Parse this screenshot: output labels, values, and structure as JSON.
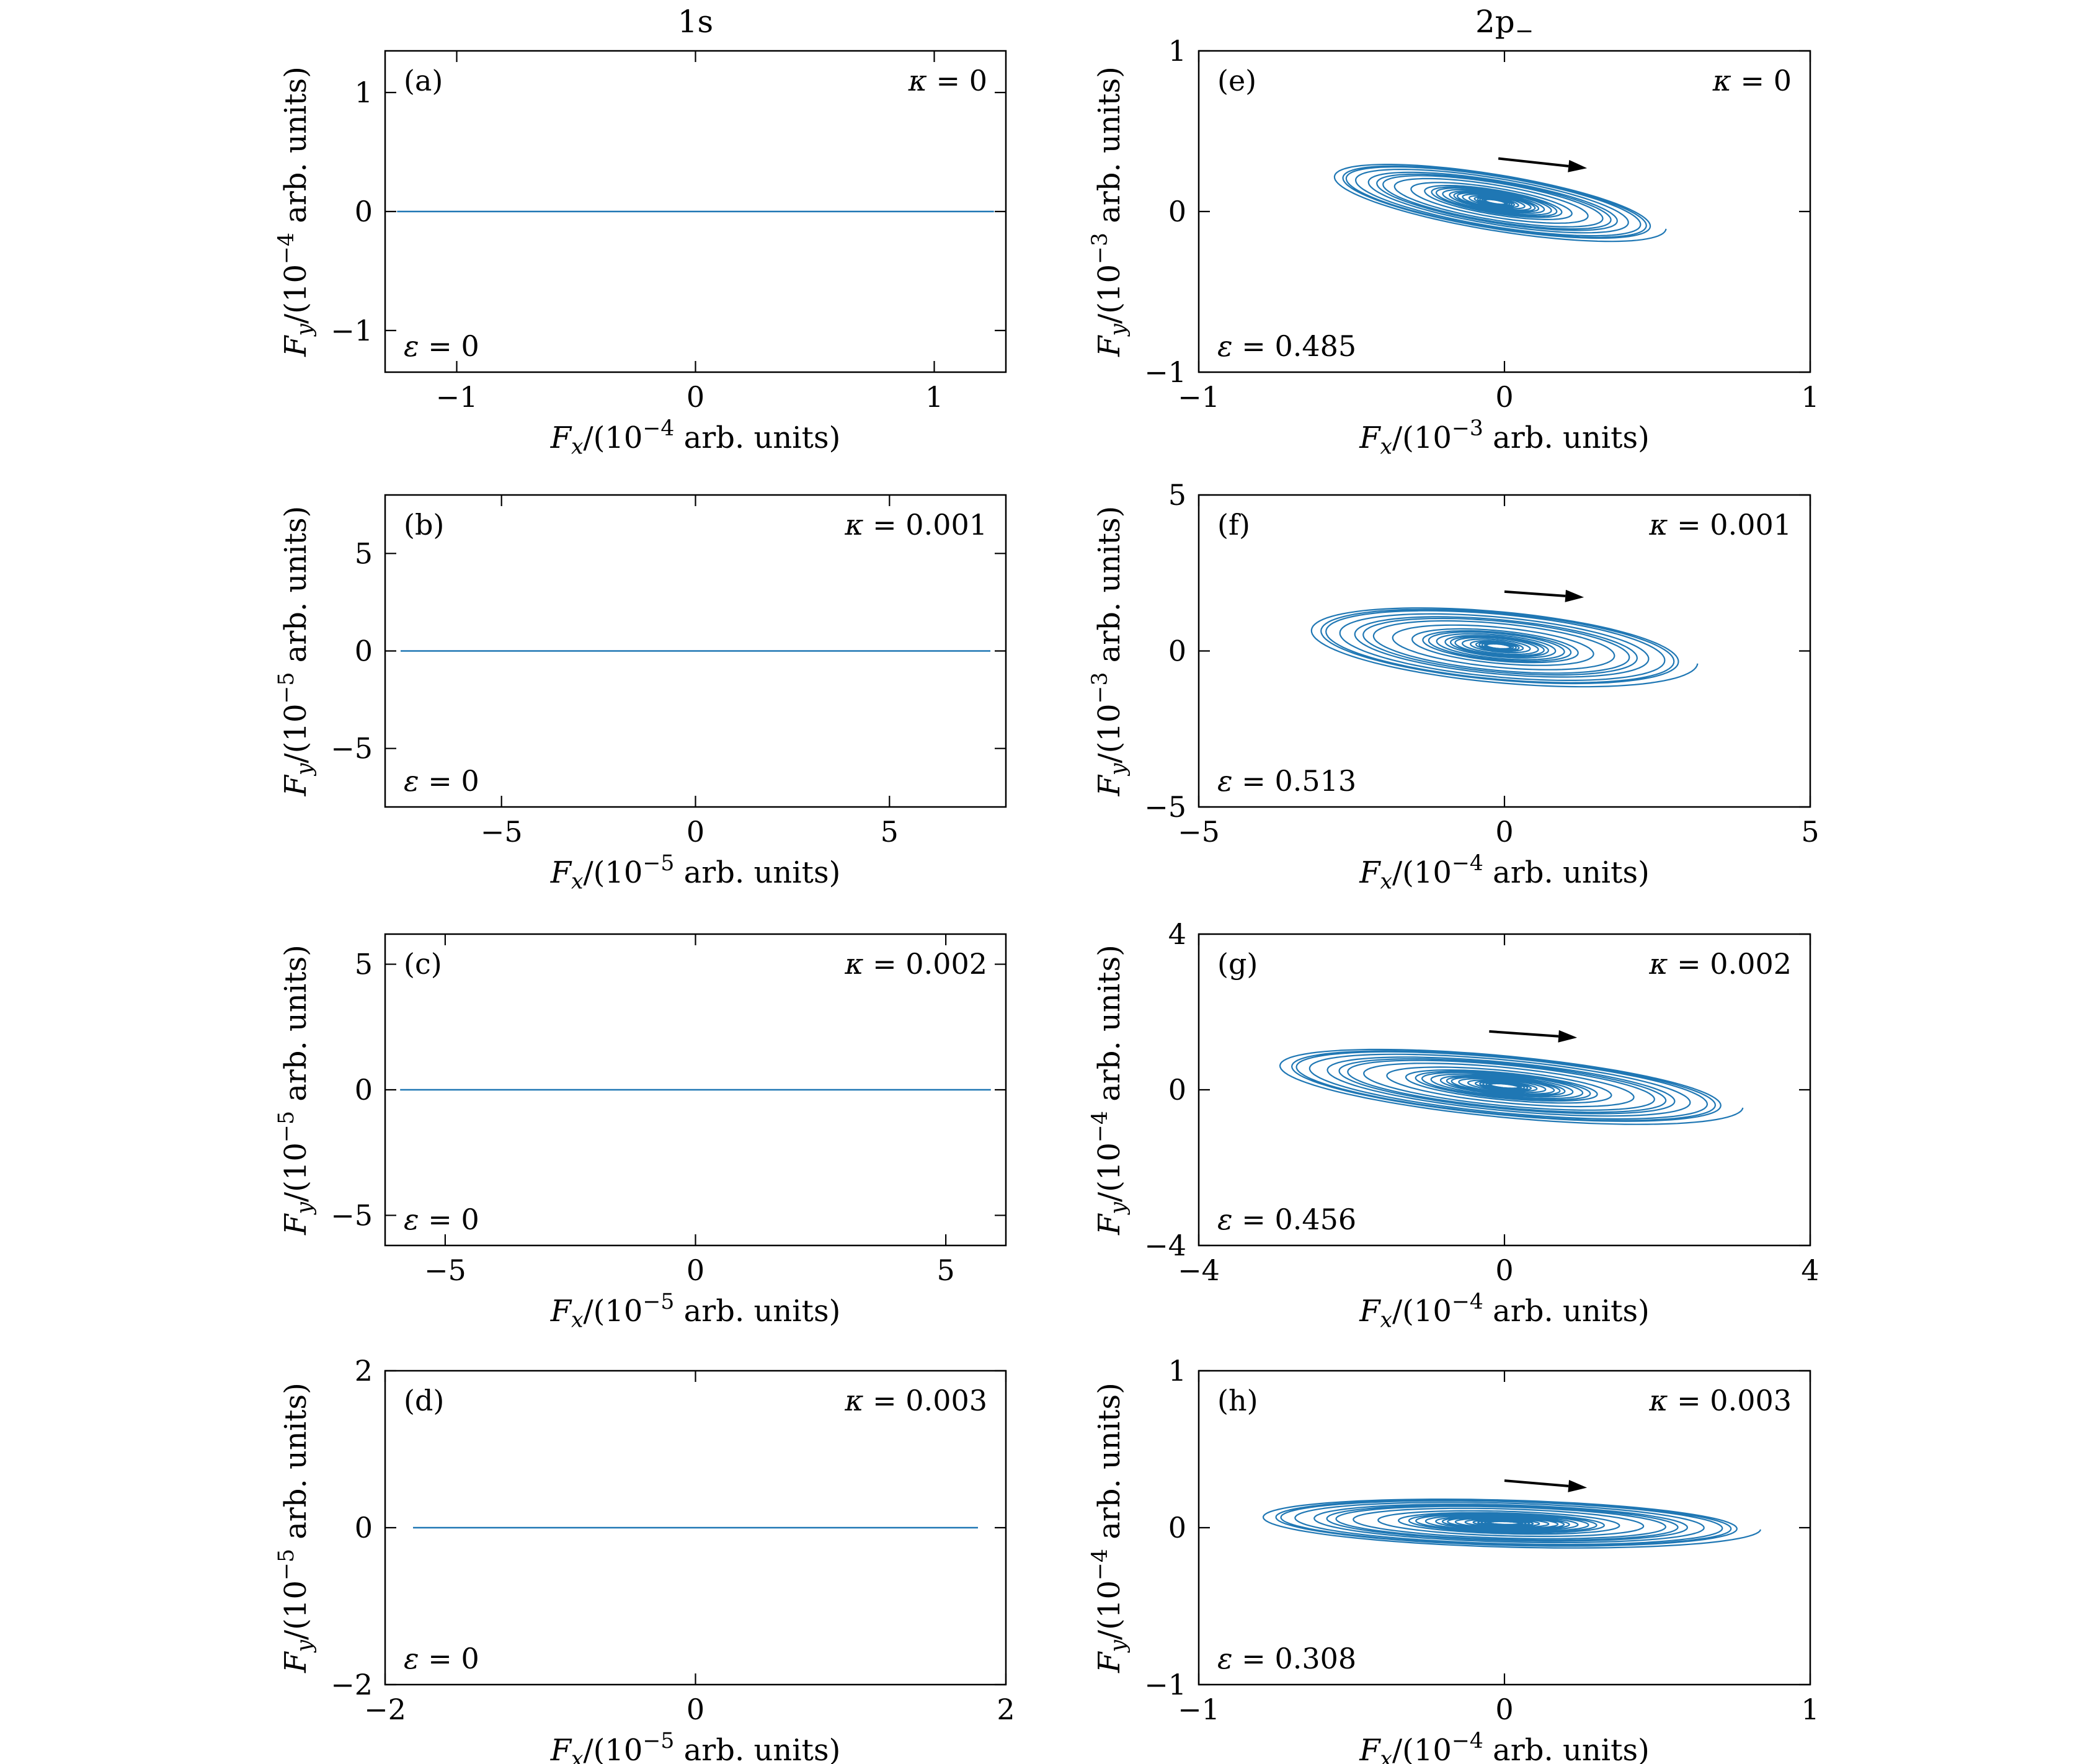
{
  "figure": {
    "background": "#ffffff",
    "colors": {
      "trajectory": "#1f77b4",
      "axis": "#000000",
      "text": "#000000",
      "arrow": "#000000"
    },
    "column_titles": [
      {
        "base": "1s",
        "sub": ""
      },
      {
        "base": "2p",
        "sub": "−"
      }
    ]
  },
  "chart_data": [
    {
      "id": "a",
      "type": "line",
      "column": 0,
      "row": 0,
      "panel_label": "(a)",
      "kappa_symbol": "κ",
      "kappa_value": "0",
      "epsilon_symbol": "ε",
      "epsilon_value": "0",
      "x_axis": {
        "variable": "F",
        "sub": "x",
        "exponent": "−4",
        "unit": "arb. units",
        "ticks": [
          -1,
          0,
          1
        ],
        "range": [
          -1.3,
          1.3
        ]
      },
      "y_axis": {
        "variable": "F",
        "sub": "y",
        "exponent": "−4",
        "unit": "arb. units",
        "ticks": [
          -1,
          0,
          1
        ],
        "range": [
          -1.35,
          1.35
        ]
      },
      "series": {
        "kind": "flat-line",
        "y": 0,
        "x_span": [
          -1.25,
          1.25
        ]
      }
    },
    {
      "id": "b",
      "type": "line",
      "column": 0,
      "row": 1,
      "panel_label": "(b)",
      "kappa_symbol": "κ",
      "kappa_value": "0.001",
      "epsilon_symbol": "ε",
      "epsilon_value": "0",
      "x_axis": {
        "variable": "F",
        "sub": "x",
        "exponent": "−5",
        "unit": "arb. units",
        "ticks": [
          -5,
          0,
          5
        ],
        "range": [
          -8,
          8
        ]
      },
      "y_axis": {
        "variable": "F",
        "sub": "y",
        "exponent": "−5",
        "unit": "arb. units",
        "ticks": [
          -5,
          0,
          5
        ],
        "range": [
          -8,
          8
        ]
      },
      "series": {
        "kind": "flat-line",
        "y": 0,
        "x_span": [
          -7.6,
          7.6
        ]
      }
    },
    {
      "id": "c",
      "type": "line",
      "column": 0,
      "row": 2,
      "panel_label": "(c)",
      "kappa_symbol": "κ",
      "kappa_value": "0.002",
      "epsilon_symbol": "ε",
      "epsilon_value": "0",
      "x_axis": {
        "variable": "F",
        "sub": "x",
        "exponent": "−5",
        "unit": "arb. units",
        "ticks": [
          -5,
          0,
          5
        ],
        "range": [
          -6.2,
          6.2
        ]
      },
      "y_axis": {
        "variable": "F",
        "sub": "y",
        "exponent": "−5",
        "unit": "arb. units",
        "ticks": [
          -5,
          0,
          5
        ],
        "range": [
          -6.2,
          6.2
        ]
      },
      "series": {
        "kind": "flat-line",
        "y": 0,
        "x_span": [
          -5.9,
          5.9
        ]
      }
    },
    {
      "id": "d",
      "type": "line",
      "column": 0,
      "row": 3,
      "panel_label": "(d)",
      "kappa_symbol": "κ",
      "kappa_value": "0.003",
      "epsilon_symbol": "ε",
      "epsilon_value": "0",
      "x_axis": {
        "variable": "F",
        "sub": "x",
        "exponent": "−5",
        "unit": "arb. units",
        "ticks": [
          -2,
          0,
          2
        ],
        "range": [
          -2,
          2
        ]
      },
      "y_axis": {
        "variable": "F",
        "sub": "y",
        "exponent": "−5",
        "unit": "arb. units",
        "ticks": [
          -2,
          0,
          2
        ],
        "range": [
          -2,
          2
        ]
      },
      "series": {
        "kind": "flat-line",
        "y": 0,
        "x_span": [
          -1.82,
          1.82
        ]
      }
    },
    {
      "id": "e",
      "type": "line",
      "column": 1,
      "row": 0,
      "panel_label": "(e)",
      "kappa_symbol": "κ",
      "kappa_value": "0",
      "epsilon_symbol": "ε",
      "epsilon_value": "0.485",
      "x_axis": {
        "variable": "F",
        "sub": "x",
        "exponent": "−3",
        "unit": "arb. units",
        "ticks": [
          -1,
          0,
          1
        ],
        "range": [
          -1,
          1
        ]
      },
      "y_axis": {
        "variable": "F",
        "sub": "y",
        "exponent": "−3",
        "unit": "arb. units",
        "ticks": [
          -1,
          0,
          1
        ],
        "range": [
          -1,
          1
        ]
      },
      "series": {
        "kind": "spiral",
        "center": [
          -0.03,
          0.06
        ],
        "amplitude_x": 0.6,
        "amplitude_y": 0.2,
        "tilt": -0.3,
        "loops": 26
      },
      "arrow": {
        "from": [
          -0.02,
          0.33
        ],
        "to": [
          0.27,
          0.27
        ]
      }
    },
    {
      "id": "f",
      "type": "line",
      "column": 1,
      "row": 1,
      "panel_label": "(f)",
      "kappa_symbol": "κ",
      "kappa_value": "0.001",
      "epsilon_symbol": "ε",
      "epsilon_value": "0.513",
      "x_axis": {
        "variable": "F",
        "sub": "x",
        "exponent": "−4",
        "unit": "arb. units",
        "ticks": [
          -5,
          0,
          5
        ],
        "range": [
          -5,
          5
        ]
      },
      "y_axis": {
        "variable": "F",
        "sub": "y",
        "exponent": "−3",
        "unit": "arb. units",
        "ticks": [
          -5,
          0,
          5
        ],
        "range": [
          -5,
          5
        ]
      },
      "series": {
        "kind": "spiral",
        "center": [
          -0.1,
          0.15
        ],
        "amplitude_x": 3.5,
        "amplitude_y": 1.3,
        "tilt": -0.17,
        "loops": 24
      },
      "arrow": {
        "from": [
          0.0,
          1.9
        ],
        "to": [
          1.3,
          1.72
        ]
      }
    },
    {
      "id": "g",
      "type": "line",
      "column": 1,
      "row": 2,
      "panel_label": "(g)",
      "kappa_symbol": "κ",
      "kappa_value": "0.002",
      "epsilon_symbol": "ε",
      "epsilon_value": "0.456",
      "x_axis": {
        "variable": "F",
        "sub": "x",
        "exponent": "−4",
        "unit": "arb. units",
        "ticks": [
          -4,
          0,
          4
        ],
        "range": [
          -4,
          4
        ]
      },
      "y_axis": {
        "variable": "F",
        "sub": "y",
        "exponent": "−4",
        "unit": "arb. units",
        "ticks": [
          -4,
          0,
          4
        ],
        "range": [
          -4,
          4
        ]
      },
      "series": {
        "kind": "spiral",
        "center": [
          0.0,
          0.1
        ],
        "amplitude_x": 3.35,
        "amplitude_y": 0.9,
        "tilt": -0.18,
        "loops": 26
      },
      "arrow": {
        "from": [
          -0.2,
          1.5
        ],
        "to": [
          0.95,
          1.34
        ]
      }
    },
    {
      "id": "h",
      "type": "line",
      "column": 1,
      "row": 3,
      "panel_label": "(h)",
      "kappa_symbol": "κ",
      "kappa_value": "0.003",
      "epsilon_symbol": "ε",
      "epsilon_value": "0.308",
      "x_axis": {
        "variable": "F",
        "sub": "x",
        "exponent": "−4",
        "unit": "arb. units",
        "ticks": [
          -1,
          0,
          1
        ],
        "range": [
          -1,
          1
        ]
      },
      "y_axis": {
        "variable": "F",
        "sub": "y",
        "exponent": "−4",
        "unit": "arb. units",
        "ticks": [
          -1,
          0,
          1
        ],
        "range": [
          -1,
          1
        ]
      },
      "series": {
        "kind": "spiral",
        "center": [
          0.0,
          0.03
        ],
        "amplitude_x": 0.9,
        "amplitude_y": 0.17,
        "tilt": -0.05,
        "loops": 26
      },
      "arrow": {
        "from": [
          0.0,
          0.3
        ],
        "to": [
          0.27,
          0.255
        ]
      }
    }
  ]
}
